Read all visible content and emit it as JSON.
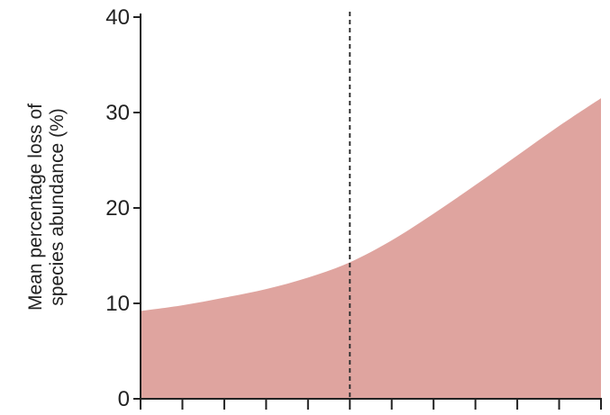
{
  "chart_data": {
    "type": "area",
    "title": "",
    "ylabel_lines": [
      "Mean percentage loss of",
      "species abundance (%)"
    ],
    "xlabel": "",
    "ylim": [
      0,
      40
    ],
    "yticks": [
      0,
      10,
      20,
      30,
      40
    ],
    "ytick_labels": [
      "0",
      "10",
      "20",
      "30",
      "40"
    ],
    "xlim": [
      0,
      11
    ],
    "xticks": [
      0,
      1,
      2,
      3,
      4,
      5,
      6,
      7,
      8,
      9,
      10,
      11
    ],
    "reference_line_x": 5,
    "x": [
      0,
      1,
      2,
      3,
      4,
      5,
      6,
      7,
      8,
      9,
      10,
      11
    ],
    "y": [
      9.2,
      9.8,
      10.6,
      11.5,
      12.7,
      14.3,
      16.6,
      19.4,
      22.4,
      25.5,
      28.6,
      31.5
    ],
    "colors": {
      "fill": "#dfa49f",
      "axis": "#222222",
      "reference_line": "#333333"
    }
  }
}
